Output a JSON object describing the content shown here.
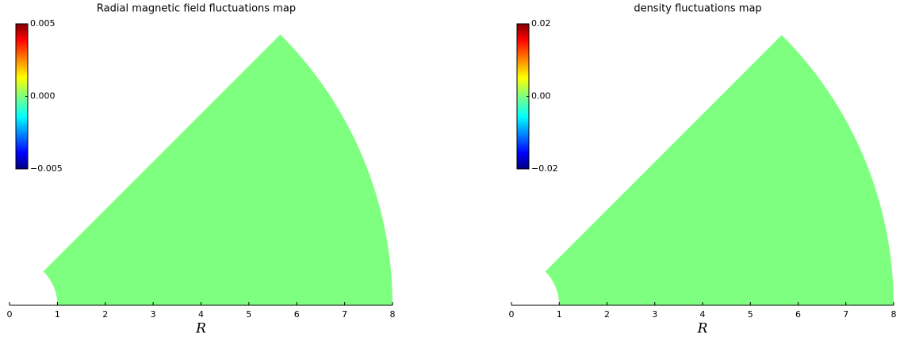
{
  "chart_data": [
    {
      "type": "polar-heatmap",
      "title": "Radial magnetic field fluctuations map",
      "xlabel": "R",
      "xlim": [
        0,
        8
      ],
      "xticks": [
        0,
        1,
        2,
        3,
        4,
        5,
        6,
        7,
        8
      ],
      "clim": [
        -0.005,
        0.005
      ],
      "cticks": [
        {
          "value": 0.005,
          "label": "0.005"
        },
        {
          "value": 0,
          "label": "0.000"
        },
        {
          "value": -0.005,
          "label": "−0.005"
        }
      ]
    },
    {
      "type": "polar-heatmap",
      "title": "density fluctuations map",
      "xlabel": "R",
      "xlim": [
        0,
        8
      ],
      "xticks": [
        0,
        1,
        2,
        3,
        4,
        5,
        6,
        7,
        8
      ],
      "clim": [
        -0.02,
        0.02
      ],
      "cticks": [
        0.02,
        {
          "value": 0,
          "label": "0.00"
        },
        {
          "value": -0.02,
          "label": "−0.02"
        }
      ]
    }
  ]
}
